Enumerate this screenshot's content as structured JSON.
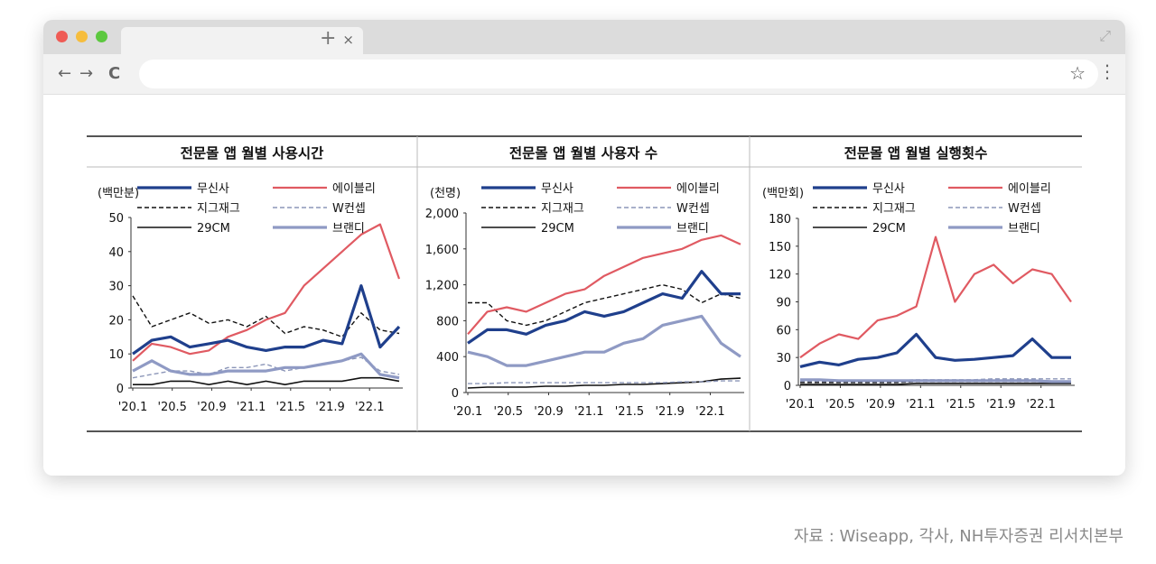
{
  "browser": {
    "tab_close": "×",
    "new_tab": "+",
    "back": "←",
    "forward": "→",
    "reload": "C",
    "star": "☆",
    "menu": "⋮"
  },
  "source": "자료 : Wiseapp, 각사, NH투자증권 리서치본부",
  "legend_labels": [
    "무신사",
    "에이블리",
    "지그재그",
    "W컨셉",
    "29CM",
    "브랜디"
  ],
  "colors": {
    "무신사": "#1f3f8c",
    "에이블리": "#e05a62",
    "지그재그": "#111111",
    "W컨셉": "#8c96b8",
    "29CM": "#111111",
    "브랜디": "#8f9ac4"
  },
  "chart_data": [
    {
      "type": "line",
      "title": "전문몰 앱 월별 사용시간",
      "ylabel": "(백만분)",
      "ylim": [
        0,
        50
      ],
      "yticks": [
        0,
        10,
        20,
        30,
        40,
        50
      ],
      "xticks": [
        "'20.1",
        "'20.5",
        "'20.9",
        "'21.1",
        "'21.5",
        "'21.9",
        "'22.1"
      ],
      "x_range": [
        "'20.1",
        "'22.4"
      ],
      "series": [
        {
          "name": "에이블리",
          "values": [
            8,
            13,
            12,
            10,
            11,
            15,
            17,
            20,
            22,
            30,
            35,
            40,
            45,
            48,
            32
          ]
        },
        {
          "name": "무신사",
          "values": [
            10,
            14,
            15,
            12,
            13,
            14,
            12,
            11,
            12,
            12,
            14,
            13,
            30,
            12,
            18
          ]
        },
        {
          "name": "지그재그",
          "values": [
            27,
            18,
            20,
            22,
            19,
            20,
            18,
            21,
            16,
            18,
            17,
            15,
            22,
            17,
            16
          ]
        },
        {
          "name": "W컨셉",
          "values": [
            3,
            4,
            5,
            5,
            4,
            6,
            6,
            7,
            5,
            6,
            7,
            8,
            9,
            5,
            4
          ]
        },
        {
          "name": "29CM",
          "values": [
            1,
            1,
            2,
            2,
            1,
            2,
            1,
            2,
            1,
            2,
            2,
            2,
            3,
            3,
            2
          ]
        },
        {
          "name": "브랜디",
          "values": [
            5,
            8,
            5,
            4,
            4,
            5,
            5,
            5,
            6,
            6,
            7,
            8,
            10,
            4,
            3
          ]
        }
      ]
    },
    {
      "type": "line",
      "title": "전문몰 앱 월별 사용자 수",
      "ylabel": "(천명)",
      "ylim": [
        0,
        2000
      ],
      "yticks": [
        0,
        400,
        800,
        1200,
        1600,
        2000
      ],
      "xticks": [
        "'20.1",
        "'20.5",
        "'20.9",
        "'21.1",
        "'21.5",
        "'21.9",
        "'22.1"
      ],
      "x_range": [
        "'20.1",
        "'22.4"
      ],
      "series": [
        {
          "name": "에이블리",
          "values": [
            650,
            900,
            950,
            900,
            1000,
            1100,
            1150,
            1300,
            1400,
            1500,
            1550,
            1600,
            1700,
            1750,
            1650
          ]
        },
        {
          "name": "무신사",
          "values": [
            550,
            700,
            700,
            650,
            750,
            800,
            900,
            850,
            900,
            1000,
            1100,
            1050,
            1350,
            1100,
            1100
          ]
        },
        {
          "name": "지그재그",
          "values": [
            1000,
            1000,
            800,
            750,
            800,
            900,
            1000,
            1050,
            1100,
            1150,
            1200,
            1150,
            1000,
            1100,
            1050
          ]
        },
        {
          "name": "W컨셉",
          "values": [
            100,
            100,
            110,
            110,
            110,
            110,
            110,
            110,
            110,
            110,
            110,
            120,
            120,
            130,
            130
          ]
        },
        {
          "name": "29CM",
          "values": [
            50,
            60,
            60,
            60,
            70,
            70,
            80,
            80,
            90,
            90,
            100,
            110,
            120,
            150,
            160
          ]
        },
        {
          "name": "브랜디",
          "values": [
            450,
            400,
            300,
            300,
            350,
            400,
            450,
            450,
            550,
            600,
            750,
            800,
            850,
            550,
            400
          ]
        }
      ]
    },
    {
      "type": "line",
      "title": "전문몰 앱 월별 실행횟수",
      "ylabel": "(백만회)",
      "ylim": [
        0,
        180
      ],
      "yticks": [
        0,
        30,
        60,
        90,
        120,
        150,
        180
      ],
      "xticks": [
        "'20.1",
        "'20.5",
        "'20.9",
        "'21.1",
        "'21.5",
        "'21.9",
        "'22.1"
      ],
      "x_range": [
        "'20.1",
        "'22.4"
      ],
      "series": [
        {
          "name": "에이블리",
          "values": [
            30,
            45,
            55,
            50,
            70,
            75,
            85,
            160,
            90,
            120,
            130,
            110,
            125,
            120,
            90
          ]
        },
        {
          "name": "무신사",
          "values": [
            20,
            25,
            22,
            28,
            30,
            35,
            55,
            30,
            27,
            28,
            30,
            32,
            50,
            30,
            30
          ]
        },
        {
          "name": "지그재그",
          "values": [
            3,
            3,
            3,
            3,
            3,
            3,
            4,
            4,
            4,
            4,
            4,
            4,
            4,
            4,
            4
          ]
        },
        {
          "name": "W컨셉",
          "values": [
            4,
            4,
            4,
            5,
            5,
            5,
            6,
            6,
            6,
            6,
            7,
            7,
            7,
            7,
            7
          ]
        },
        {
          "name": "29CM",
          "values": [
            1,
            1,
            1,
            1,
            1,
            1,
            2,
            2,
            2,
            2,
            2,
            2,
            2,
            2,
            2
          ]
        },
        {
          "name": "브랜디",
          "values": [
            6,
            6,
            5,
            5,
            5,
            5,
            5,
            5,
            5,
            5,
            5,
            5,
            5,
            4,
            4
          ]
        }
      ]
    }
  ]
}
